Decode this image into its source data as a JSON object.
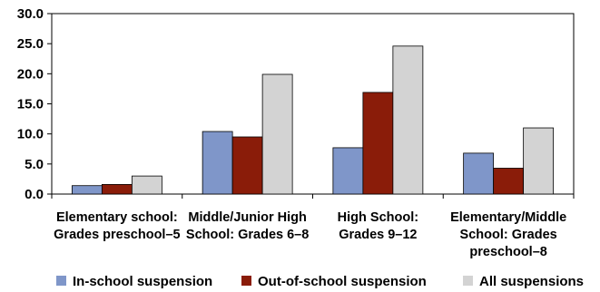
{
  "chart_data": {
    "type": "bar",
    "title": "",
    "xlabel": "",
    "ylabel": "",
    "ylim": [
      0,
      30
    ],
    "yticks": [
      "0.0",
      "5.0",
      "10.0",
      "15.0",
      "20.0",
      "25.0",
      "30.0"
    ],
    "grid": false,
    "legend_position": "bottom",
    "categories": [
      [
        "Elementary school:",
        "Grades preschool–5"
      ],
      [
        "Middle/Junior High",
        "School: Grades 6–8"
      ],
      [
        "High School:",
        "Grades 9–12"
      ],
      [
        "Elementary/Middle",
        "School: Grades",
        "preschool–8"
      ]
    ],
    "series": [
      {
        "name": "In-school suspension",
        "color": "#7f96c9",
        "values": [
          1.4,
          10.4,
          7.7,
          6.8
        ]
      },
      {
        "name": "Out-of-school suspension",
        "color": "#8a1c09",
        "values": [
          1.6,
          9.5,
          16.9,
          4.3
        ]
      },
      {
        "name": "All suspensions",
        "color": "#d3d3d3",
        "values": [
          3.0,
          19.9,
          24.6,
          11.0
        ]
      }
    ]
  }
}
